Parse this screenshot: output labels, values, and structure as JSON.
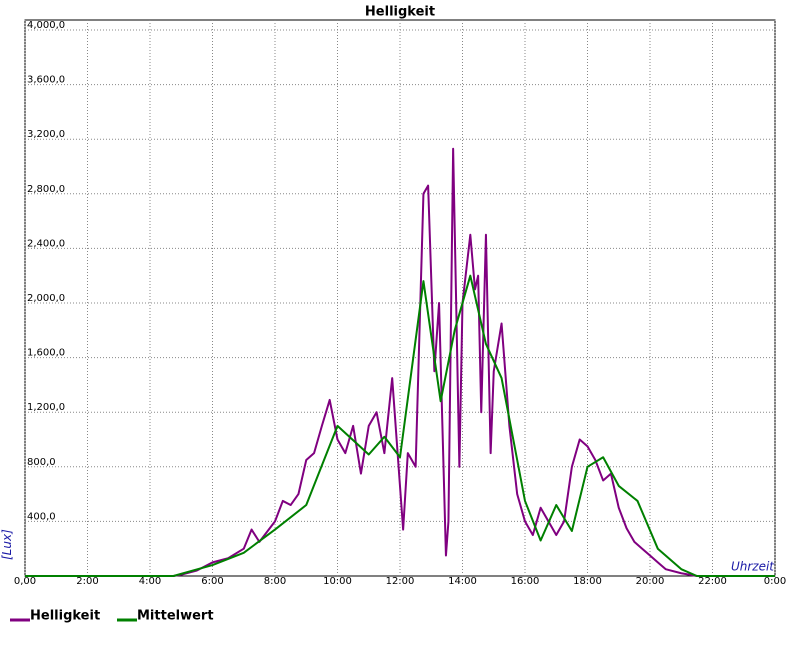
{
  "chart_data": {
    "type": "line",
    "title": "Helligkeit",
    "y_label": "[Lux]",
    "x_label": "Uhrzeit",
    "xlim": [
      0,
      24
    ],
    "ylim": [
      0,
      4000
    ],
    "xticks": [
      {
        "value": 0,
        "label": "0,00"
      },
      {
        "value": 2,
        "label": "2:00"
      },
      {
        "value": 4,
        "label": "4:00"
      },
      {
        "value": 6,
        "label": "6:00"
      },
      {
        "value": 8,
        "label": "8:00"
      },
      {
        "value": 10,
        "label": "10:00"
      },
      {
        "value": 12,
        "label": "12:00"
      },
      {
        "value": 14,
        "label": "14:00"
      },
      {
        "value": 16,
        "label": "16:00"
      },
      {
        "value": 18,
        "label": "18:00"
      },
      {
        "value": 20,
        "label": "20:00"
      },
      {
        "value": 22,
        "label": "22:00"
      },
      {
        "value": 24,
        "label": "0:00"
      }
    ],
    "yticks": [
      {
        "value": 400,
        "label": "400,0"
      },
      {
        "value": 800,
        "label": "800,0"
      },
      {
        "value": 1200,
        "label": "1,200,0"
      },
      {
        "value": 1600,
        "label": "1,600,0"
      },
      {
        "value": 2000,
        "label": "2,000,0"
      },
      {
        "value": 2400,
        "label": "2,400,0"
      },
      {
        "value": 2800,
        "label": "2,800,0"
      },
      {
        "value": 3200,
        "label": "3,200,0"
      },
      {
        "value": 3600,
        "label": "3,600,0"
      },
      {
        "value": 4000,
        "label": "4,000,0"
      }
    ],
    "grid": true,
    "series": [
      {
        "name": "Helligkeit",
        "color": "#800080",
        "x": [
          0,
          4.75,
          5,
          5.5,
          6,
          6.5,
          7,
          7.25,
          7.5,
          8,
          8.25,
          8.5,
          8.75,
          9,
          9.25,
          9.5,
          9.75,
          10,
          10.25,
          10.5,
          10.75,
          11,
          11.25,
          11.5,
          11.75,
          12.1,
          12.25,
          12.5,
          12.75,
          12.9,
          13.1,
          13.25,
          13.47,
          13.55,
          13.7,
          13.9,
          14,
          14.25,
          14.4,
          14.5,
          14.6,
          14.75,
          14.9,
          15,
          15.25,
          15.5,
          15.75,
          16,
          16.25,
          16.5,
          16.75,
          17,
          17.25,
          17.5,
          17.75,
          18,
          18.25,
          18.5,
          18.75,
          19,
          19.25,
          19.5,
          19.75,
          20,
          20.25,
          20.5,
          21,
          21.5,
          24
        ],
        "values": [
          0,
          0,
          10,
          40,
          100,
          130,
          200,
          340,
          250,
          400,
          550,
          520,
          600,
          850,
          900,
          1100,
          1290,
          1000,
          900,
          1100,
          750,
          1100,
          1200,
          900,
          1450,
          340,
          900,
          800,
          2800,
          2860,
          1500,
          2000,
          150,
          400,
          3130,
          800,
          2000,
          2500,
          2100,
          2200,
          1200,
          2500,
          900,
          1500,
          1850,
          1100,
          600,
          400,
          300,
          500,
          400,
          300,
          400,
          800,
          1000,
          950,
          850,
          700,
          750,
          500,
          350,
          250,
          200,
          150,
          100,
          50,
          20,
          0,
          0
        ]
      },
      {
        "name": "Mittelwert",
        "color": "#008000",
        "x": [
          0,
          4.75,
          6,
          7,
          8,
          9,
          10,
          11,
          11.5,
          12,
          12.75,
          13.3,
          13.75,
          14.25,
          14.75,
          15.25,
          16,
          16.5,
          17,
          17.5,
          18,
          18.5,
          19,
          19.6,
          20.25,
          21,
          21.5,
          24
        ],
        "values": [
          0,
          0,
          80,
          170,
          340,
          520,
          1100,
          890,
          1020,
          870,
          2160,
          1280,
          1800,
          2200,
          1700,
          1450,
          550,
          260,
          520,
          330,
          800,
          870,
          660,
          550,
          200,
          50,
          0,
          0
        ]
      }
    ]
  }
}
